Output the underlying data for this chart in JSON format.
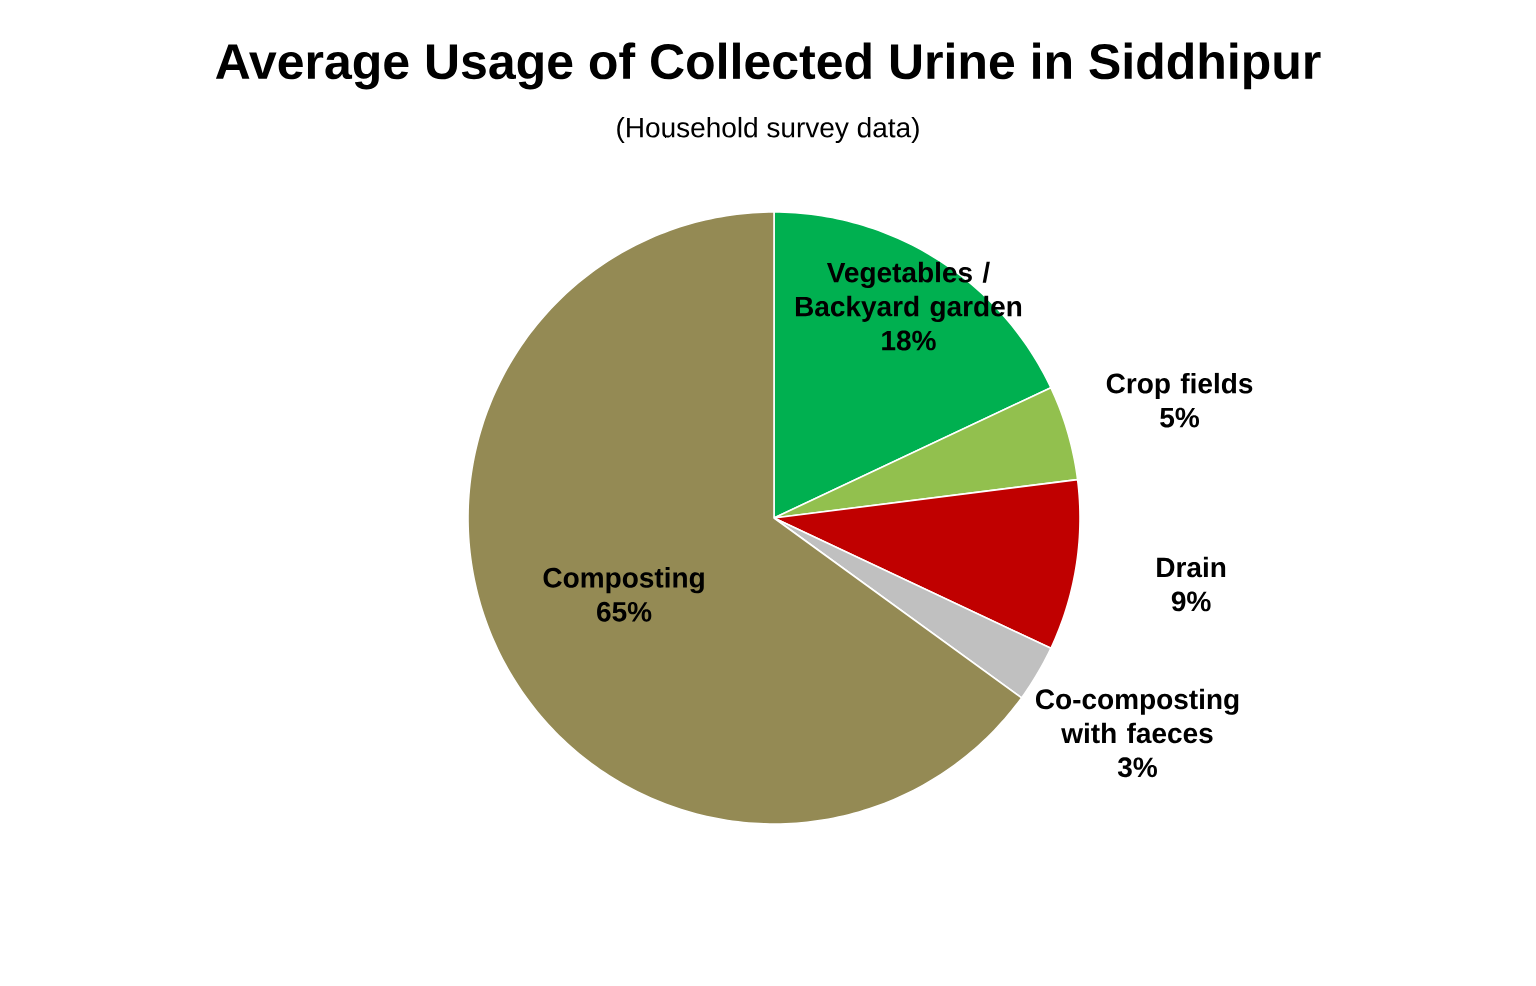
{
  "chart_data": {
    "type": "pie",
    "title": "Average Usage of Collected Urine in Siddhipur",
    "subtitle": "(Household survey data)",
    "categories": [
      "Vegetables / Backyard garden",
      "Crop fields",
      "Drain",
      "Co-composting with faeces",
      "Composting"
    ],
    "values": [
      18,
      5,
      9,
      3,
      65
    ],
    "value_labels": [
      "18%",
      "5%",
      "9%",
      "3%",
      "65%"
    ],
    "colors": [
      "#00b050",
      "#92c04e",
      "#c00000",
      "#c0c0c0",
      "#948a54"
    ]
  }
}
